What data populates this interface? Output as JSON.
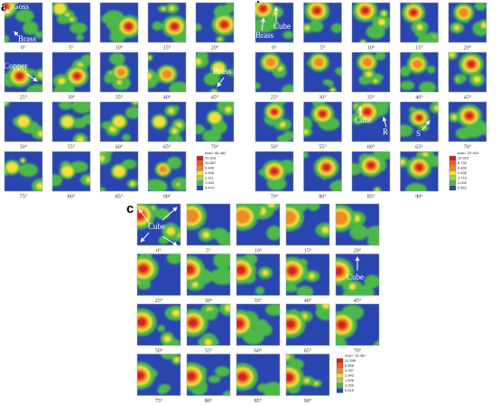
{
  "panels": [
    {
      "label": "a",
      "angles": [
        "0°",
        "5°",
        "10°",
        "15°",
        "20°",
        "25°",
        "30°",
        "35°",
        "40°",
        "45°",
        "50°",
        "55°",
        "60°",
        "65°",
        "70°",
        "75°",
        "80°",
        "85°",
        "90°"
      ],
      "legend": {
        "max": "max= 66.482",
        "levels": [
          "41.916",
          "19.857",
          "9.406",
          "4.456",
          "2.111",
          "1.000",
          "0.474"
        ]
      },
      "annotations": [
        "Goss",
        "Brass",
        "Copper",
        "Brass"
      ]
    },
    {
      "label": "b",
      "angles": [
        "0°",
        "5°",
        "10°",
        "15°",
        "20°",
        "25°",
        "30°",
        "35°",
        "40°",
        "45°",
        "50°",
        "55°",
        "60°",
        "65°",
        "70°",
        "70°",
        "80°",
        "85°",
        "90°"
      ],
      "legend": {
        "max": "max= 25.903",
        "levels": [
          "15.910",
          "8.732",
          "4.800",
          "2.635",
          "1.719",
          "1.000",
          "0.552"
        ]
      },
      "annotations": [
        "Brass",
        "Cube",
        "Cube",
        "R",
        "S"
      ]
    },
    {
      "label": "c",
      "angles": [
        "0°",
        "5°",
        "10°",
        "15°",
        "20°",
        "25°",
        "30°",
        "35°",
        "40°",
        "45°",
        "50°",
        "55°",
        "60°",
        "65°",
        "70°",
        "75°",
        "80°",
        "85°",
        "90°"
      ],
      "legend": {
        "max": "max= 19.467",
        "levels": [
          "11.358",
          "6.666",
          "4.297",
          "2.843",
          "1.626",
          "1.000",
          "0.615"
        ]
      },
      "annotations": [
        "Cube",
        "Cube"
      ]
    }
  ]
}
